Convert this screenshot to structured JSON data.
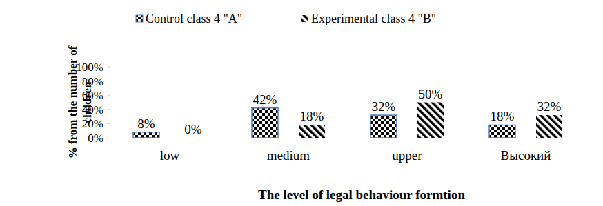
{
  "chart_data": {
    "type": "bar",
    "x_label": "The level of legal behaviour formtion",
    "y_label": "% from the number of children",
    "categories": [
      "low",
      "medium",
      "upper",
      "Высокий"
    ],
    "series": [
      {
        "name": "Control class 4 \"A\"",
        "color": "#000000",
        "values": [
          8,
          42,
          32,
          18
        ],
        "value_labels": [
          "8%",
          "42%",
          "32%",
          "18%"
        ]
      },
      {
        "name": "Experimental class 4 \"B\"",
        "color": "#000000",
        "values": [
          0,
          18,
          50,
          32
        ],
        "value_labels": [
          "0%",
          "18%",
          "50%",
          "32%"
        ]
      }
    ],
    "ylim": [
      0,
      100
    ],
    "yticks": [
      {
        "value": 0,
        "label": "0%"
      },
      {
        "value": 20,
        "label": "20%"
      },
      {
        "value": 40,
        "label": "40%"
      },
      {
        "value": 60,
        "label": "60%"
      },
      {
        "value": 80,
        "label": "80%"
      },
      {
        "value": 100,
        "label": "100%"
      }
    ],
    "grid": false,
    "legend": "top",
    "data_labels": true
  }
}
